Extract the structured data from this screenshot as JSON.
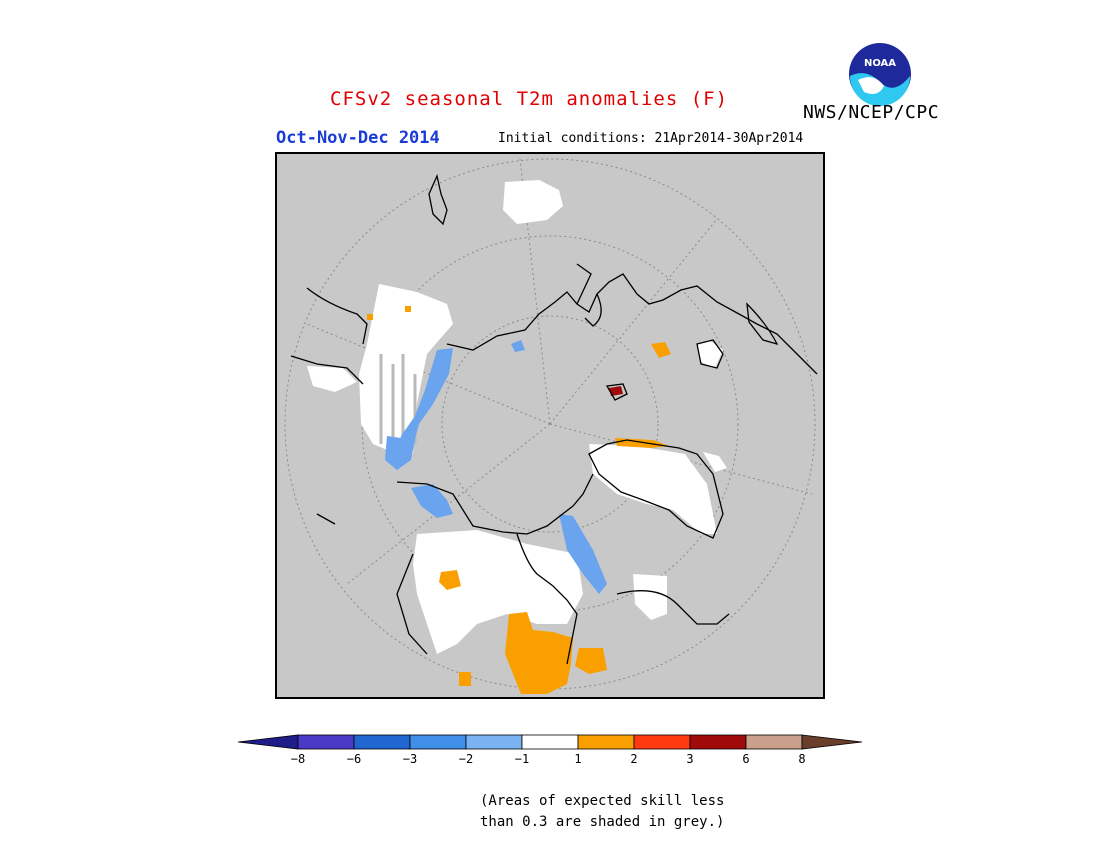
{
  "header": {
    "title": "CFSv2 seasonal T2m anomalies (F)",
    "agency": "NWS/NCEP/CPC",
    "logo_text": "NOAA",
    "period": "Oct-Nov-Dec 2014",
    "initial_conditions": "Initial conditions: 21Apr2014-30Apr2014"
  },
  "map": {
    "projection": "north polar stereographic",
    "background_color": "#c8c8c8"
  },
  "legend": {
    "colors": [
      "#1f1d8a",
      "#4b39c8",
      "#1f66d0",
      "#3f8ee8",
      "#7ab2f2",
      "#ffffff",
      "#f9a000",
      "#ff3a10",
      "#a00a0a",
      "#caa08c",
      "#6b3e2c"
    ],
    "labels": [
      "−8",
      "−6",
      "−3",
      "−2",
      "−1",
      "1",
      "2",
      "3",
      "6",
      "8"
    ]
  },
  "note": {
    "line1": "(Areas of expected skill less",
    "line2": "than 0.3 are shaded in grey.)"
  }
}
